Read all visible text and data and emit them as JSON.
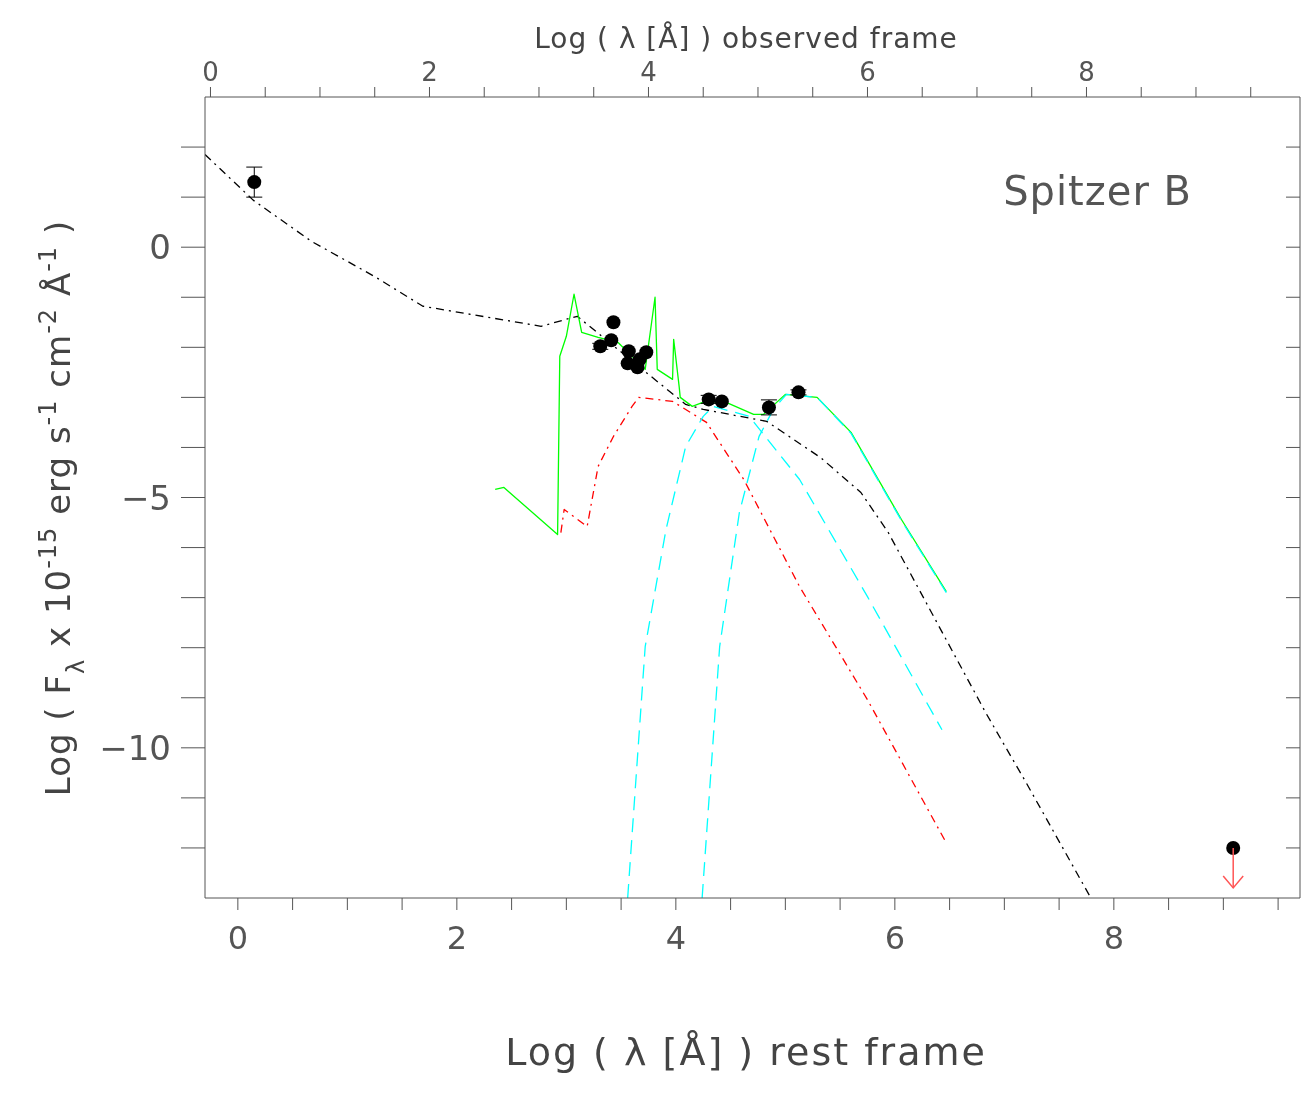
{
  "chart_data": {
    "type": "line",
    "xlabel": "Log ( λ [Å] ) rest frame",
    "x2label": "Log ( λ [Å] ) observed frame",
    "ylabel": "Log ( F$_{λ}$  x  10$^{-15}$  erg  s$^{-1}$  cm$^{-2}$  Å$^{-1}$ )",
    "annotations": [
      "Spitzer B"
    ],
    "xlim": [
      -0.3,
      9.7
    ],
    "xticks": [
      {
        "value": 0,
        "label": "0"
      },
      {
        "value": 0.5,
        "label": null
      },
      {
        "value": 1,
        "label": null
      },
      {
        "value": 1.5,
        "label": null
      },
      {
        "value": 2,
        "label": "2"
      },
      {
        "value": 2.5,
        "label": null
      },
      {
        "value": 3,
        "label": null
      },
      {
        "value": 3.5,
        "label": null
      },
      {
        "value": 4,
        "label": "4"
      },
      {
        "value": 4.5,
        "label": null
      },
      {
        "value": 5,
        "label": null
      },
      {
        "value": 5.5,
        "label": null
      },
      {
        "value": 6,
        "label": "6"
      },
      {
        "value": 6.5,
        "label": null
      },
      {
        "value": 7,
        "label": null
      },
      {
        "value": 7.5,
        "label": null
      },
      {
        "value": 8,
        "label": "8"
      },
      {
        "value": 8.5,
        "label": null
      },
      {
        "value": 9,
        "label": null
      },
      {
        "value": 9.5,
        "label": null
      }
    ],
    "x2lim": [
      -0.05,
      9.95
    ],
    "x2ticks": [
      {
        "value": 0,
        "label": "0"
      },
      {
        "value": 0.5,
        "label": null
      },
      {
        "value": 1,
        "label": null
      },
      {
        "value": 1.5,
        "label": null
      },
      {
        "value": 2,
        "label": "2"
      },
      {
        "value": 2.5,
        "label": null
      },
      {
        "value": 3,
        "label": null
      },
      {
        "value": 3.5,
        "label": null
      },
      {
        "value": 4,
        "label": "4"
      },
      {
        "value": 4.5,
        "label": null
      },
      {
        "value": 5,
        "label": null
      },
      {
        "value": 5.5,
        "label": null
      },
      {
        "value": 6,
        "label": "6"
      },
      {
        "value": 6.5,
        "label": null
      },
      {
        "value": 7,
        "label": null
      },
      {
        "value": 7.5,
        "label": null
      },
      {
        "value": 8,
        "label": "8"
      },
      {
        "value": 8.5,
        "label": null
      },
      {
        "value": 9,
        "label": null
      },
      {
        "value": 9.5,
        "label": null
      }
    ],
    "ylim": [
      -13,
      3
    ],
    "yticks": [
      {
        "value": -12,
        "label": null
      },
      {
        "value": -11,
        "label": null
      },
      {
        "value": -10,
        "label": "−10"
      },
      {
        "value": -9,
        "label": null
      },
      {
        "value": -8,
        "label": null
      },
      {
        "value": -7,
        "label": null
      },
      {
        "value": -6,
        "label": null
      },
      {
        "value": -5,
        "label": "−5"
      },
      {
        "value": -4,
        "label": null
      },
      {
        "value": -3,
        "label": null
      },
      {
        "value": -2,
        "label": null
      },
      {
        "value": -1,
        "label": null
      },
      {
        "value": 0,
        "label": "0"
      },
      {
        "value": 1,
        "label": null
      },
      {
        "value": 2,
        "label": null
      }
    ],
    "series": [
      {
        "type": "line",
        "color": "#000000",
        "line_style": "dashdot",
        "x": [
          -0.3,
          0.14,
          0.67,
          1.26,
          1.69,
          2.77,
          3.1,
          3.84,
          4.09,
          4.25,
          4.83,
          5.32,
          5.69,
          5.94,
          6.37,
          6.83,
          7.2,
          7.79
        ],
        "values": [
          1.85,
          0.94,
          0.12,
          -0.6,
          -1.18,
          -1.58,
          -1.38,
          -2.7,
          -3.14,
          -3.24,
          -3.48,
          -4.2,
          -4.9,
          -5.7,
          -7.44,
          -9.3,
          -10.7,
          -13
        ]
      },
      {
        "type": "line",
        "color": "#00ff00",
        "line_style": "solid",
        "x": [
          2.35,
          2.43,
          2.92,
          2.94,
          3.0,
          3.07,
          3.14,
          3.29,
          3.47,
          3.6,
          3.72,
          3.81,
          3.83,
          3.97,
          3.98,
          4.03,
          4.04,
          4.15,
          4.27,
          4.46,
          4.71,
          4.8,
          5.0,
          5.29,
          5.6,
          6.06,
          6.47
        ],
        "values": [
          -4.84,
          -4.8,
          -5.74,
          -2.18,
          -1.78,
          -0.94,
          -1.7,
          -1.8,
          -1.9,
          -2.18,
          -2.44,
          -1.0,
          -2.44,
          -2.64,
          -1.84,
          -2.78,
          -3.0,
          -3.18,
          -3.08,
          -3.1,
          -3.34,
          -3.34,
          -2.94,
          -3.0,
          -3.7,
          -5.44,
          -6.88
        ]
      },
      {
        "type": "line",
        "color": "#ff0000",
        "line_style": "dashdot",
        "x": [
          2.95,
          2.98,
          3.19,
          3.29,
          3.43,
          3.6,
          3.66,
          3.97,
          4.28,
          4.62,
          5.13,
          5.75,
          6.47
        ],
        "values": [
          -5.7,
          -5.24,
          -5.58,
          -4.38,
          -3.78,
          -3.18,
          -3.0,
          -3.08,
          -3.5,
          -4.64,
          -6.78,
          -9.04,
          -11.9
        ]
      },
      {
        "type": "line",
        "color": "#00ffff",
        "line_style": "dashed",
        "x": [
          3.56,
          3.72,
          3.91,
          4.09,
          4.25,
          4.34,
          4.67,
          5.13,
          5.75,
          6.43
        ],
        "values": [
          -13,
          -7.98,
          -5.64,
          -3.98,
          -3.38,
          -3.18,
          -3.38,
          -4.64,
          -6.98,
          -9.64
        ]
      },
      {
        "type": "line",
        "color": "#00ffff",
        "line_style": "dashed",
        "x": [
          4.24,
          4.4,
          4.58,
          4.76,
          4.89,
          5.01,
          5.29,
          5.6,
          6.06,
          6.47
        ],
        "values": [
          -13,
          -7.98,
          -5.3,
          -3.78,
          -3.24,
          -2.94,
          -3.0,
          -3.72,
          -5.46,
          -6.9
        ]
      },
      {
        "type": "scatter",
        "color": "#000000",
        "marker": "circle",
        "x": [
          0.15,
          3.31,
          3.41,
          3.43,
          3.57,
          3.56,
          3.65,
          3.67,
          3.73,
          4.3,
          4.42,
          4.85,
          5.12
        ],
        "values": [
          1.3,
          -1.98,
          -1.86,
          -1.5,
          -2.08,
          -2.32,
          -2.4,
          -2.24,
          -2.1,
          -3.04,
          -3.08,
          -3.2,
          -2.9
        ],
        "errors": [
          0.3,
          0.06,
          null,
          null,
          null,
          null,
          null,
          null,
          null,
          0.08,
          null,
          0.15,
          0.05
        ]
      },
      {
        "type": "scatter",
        "color": "#000000",
        "marker": "circle",
        "x": [
          9.09
        ],
        "values": [
          -12
        ]
      }
    ]
  }
}
